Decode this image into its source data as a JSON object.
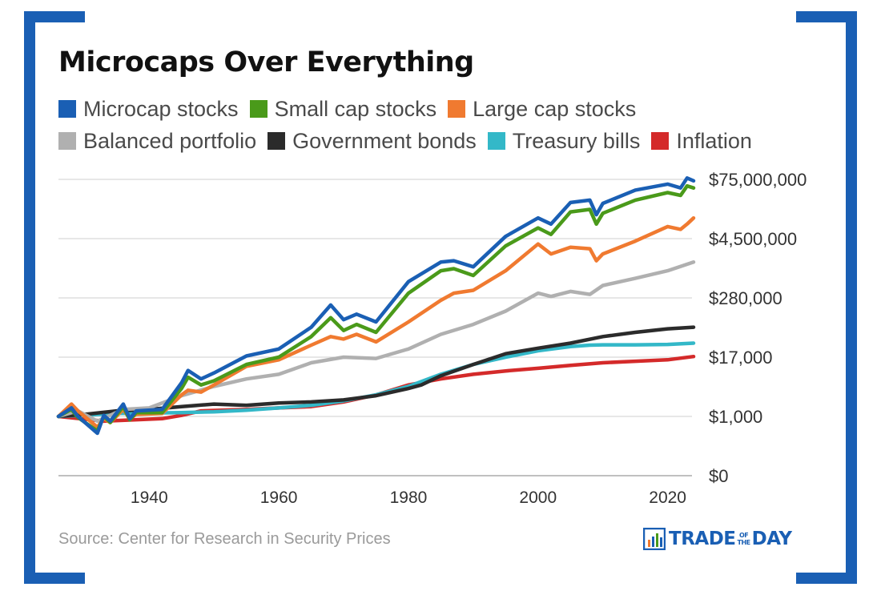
{
  "title": "Microcaps Over Everything",
  "legend_rows": [
    [
      {
        "label": "Microcap stocks",
        "color": "#1a5fb4"
      },
      {
        "label": "Small cap stocks",
        "color": "#4a9a1a"
      },
      {
        "label": "Large cap stocks",
        "color": "#f07a30"
      }
    ],
    [
      {
        "label": "Balanced portfolio",
        "color": "#b0b0b0"
      },
      {
        "label": "Government bonds",
        "color": "#2b2b2b"
      },
      {
        "label": "Treasury bills",
        "color": "#33b8c8"
      },
      {
        "label": "Inflation",
        "color": "#d42a2a"
      }
    ]
  ],
  "source": "Source: Center for Research in Security Prices",
  "logo": {
    "main_left": "TRADE",
    "small_top": "OF",
    "small_bottom": "THE",
    "main_right": "DAY"
  },
  "chart_data": {
    "type": "line",
    "title": "Microcaps Over Everything",
    "y_scale": "log",
    "y_tick_labels": [
      "$0",
      "$1,000",
      "$17,000",
      "$280,000",
      "$4,500,000",
      "$75,000,000"
    ],
    "x_ticks": [
      1940,
      1960,
      1980,
      2000,
      2020
    ],
    "x_range": [
      1926,
      2024
    ],
    "series": [
      {
        "name": "Microcap stocks",
        "color": "#1a5fb4",
        "years": [
          1926,
          1928,
          1929,
          1932,
          1933,
          1934,
          1936,
          1937,
          1938,
          1942,
          1945,
          1946,
          1948,
          1950,
          1955,
          1960,
          1965,
          1968,
          1970,
          1972,
          1975,
          1980,
          1985,
          1987,
          1990,
          1995,
          2000,
          2002,
          2005,
          2008,
          2009,
          2010,
          2015,
          2020,
          2022,
          2023,
          2024
        ],
        "values": [
          1000,
          1500,
          1000,
          450,
          1050,
          800,
          1800,
          900,
          1300,
          1400,
          5000,
          9000,
          6000,
          8000,
          18000,
          25000,
          70000,
          200000,
          100000,
          130000,
          90000,
          600000,
          1500000,
          1600000,
          1200000,
          5000000,
          12000000,
          9000000,
          25000000,
          28000000,
          14000000,
          24000000,
          45000000,
          60000000,
          50000000,
          80000000,
          70000000
        ]
      },
      {
        "name": "Small cap stocks",
        "color": "#4a9a1a",
        "years": [
          1926,
          1928,
          1929,
          1932,
          1933,
          1934,
          1936,
          1937,
          1938,
          1942,
          1945,
          1946,
          1948,
          1950,
          1955,
          1960,
          1965,
          1968,
          1970,
          1972,
          1975,
          1980,
          1985,
          1987,
          1990,
          1995,
          2000,
          2002,
          2005,
          2008,
          2009,
          2010,
          2015,
          2020,
          2022,
          2023,
          2024
        ],
        "values": [
          1000,
          1400,
          950,
          500,
          1000,
          750,
          1600,
          850,
          1200,
          1200,
          3800,
          6500,
          4500,
          5500,
          12000,
          17000,
          45000,
          110000,
          60000,
          80000,
          55000,
          350000,
          1000000,
          1100000,
          800000,
          3200000,
          7500000,
          5500000,
          16000000,
          18000000,
          9000000,
          15000000,
          28000000,
          40000000,
          35000000,
          55000000,
          50000000
        ]
      },
      {
        "name": "Large cap stocks",
        "color": "#f07a30",
        "years": [
          1926,
          1928,
          1929,
          1932,
          1933,
          1934,
          1936,
          1937,
          1938,
          1942,
          1945,
          1946,
          1948,
          1950,
          1955,
          1960,
          1965,
          1968,
          1970,
          1972,
          1975,
          1980,
          1985,
          1987,
          1990,
          1995,
          2000,
          2002,
          2005,
          2008,
          2009,
          2010,
          2015,
          2020,
          2022,
          2023,
          2024
        ],
        "values": [
          1000,
          1800,
          1300,
          600,
          900,
          750,
          1400,
          900,
          1100,
          1150,
          2800,
          3500,
          3200,
          4500,
          11000,
          15000,
          30000,
          45000,
          40000,
          50000,
          35000,
          90000,
          250000,
          350000,
          400000,
          1000000,
          3500000,
          2200000,
          3000000,
          2800000,
          1600000,
          2200000,
          4000000,
          8000000,
          7000000,
          9000000,
          12000000
        ]
      },
      {
        "name": "Balanced portfolio",
        "color": "#b0b0b0",
        "years": [
          1926,
          1929,
          1932,
          1936,
          1940,
          1945,
          1950,
          1955,
          1960,
          1965,
          1970,
          1975,
          1980,
          1985,
          1990,
          1995,
          2000,
          2002,
          2005,
          2008,
          2010,
          2015,
          2020,
          2024
        ],
        "values": [
          1000,
          1300,
          800,
          1400,
          1500,
          2700,
          4200,
          6000,
          7500,
          13000,
          17000,
          16000,
          25000,
          50000,
          80000,
          150000,
          350000,
          300000,
          380000,
          330000,
          500000,
          700000,
          1000000,
          1500000
        ]
      },
      {
        "name": "Government bonds",
        "color": "#2b2b2b",
        "years": [
          1926,
          1930,
          1935,
          1940,
          1945,
          1950,
          1955,
          1960,
          1965,
          1970,
          1975,
          1980,
          1982,
          1985,
          1990,
          1995,
          2000,
          2005,
          2010,
          2015,
          2020,
          2024
        ],
        "values": [
          1000,
          1100,
          1300,
          1400,
          1600,
          1800,
          1700,
          1900,
          2000,
          2200,
          2700,
          3800,
          4500,
          7000,
          12000,
          20000,
          26000,
          33000,
          45000,
          55000,
          65000,
          70000
        ]
      },
      {
        "name": "Treasury bills",
        "color": "#33b8c8",
        "years": [
          1926,
          1935,
          1945,
          1950,
          1955,
          1960,
          1965,
          1970,
          1975,
          1980,
          1985,
          1990,
          1995,
          2000,
          2005,
          2008,
          2010,
          2015,
          2020,
          2024
        ],
        "values": [
          1000,
          1150,
          1200,
          1250,
          1350,
          1500,
          1700,
          2100,
          2800,
          4200,
          7500,
          12000,
          17000,
          23000,
          28000,
          30000,
          30500,
          30500,
          31000,
          33000
        ]
      },
      {
        "name": "Inflation",
        "color": "#d42a2a",
        "years": [
          1926,
          1933,
          1942,
          1945,
          1948,
          1955,
          1960,
          1965,
          1970,
          1975,
          1980,
          1985,
          1990,
          1995,
          2000,
          2005,
          2010,
          2015,
          2020,
          2024
        ],
        "values": [
          1000,
          800,
          900,
          1050,
          1300,
          1400,
          1500,
          1600,
          2000,
          2800,
          4500,
          6000,
          7500,
          8800,
          10000,
          11500,
          13000,
          14000,
          15000,
          17500
        ]
      }
    ]
  }
}
